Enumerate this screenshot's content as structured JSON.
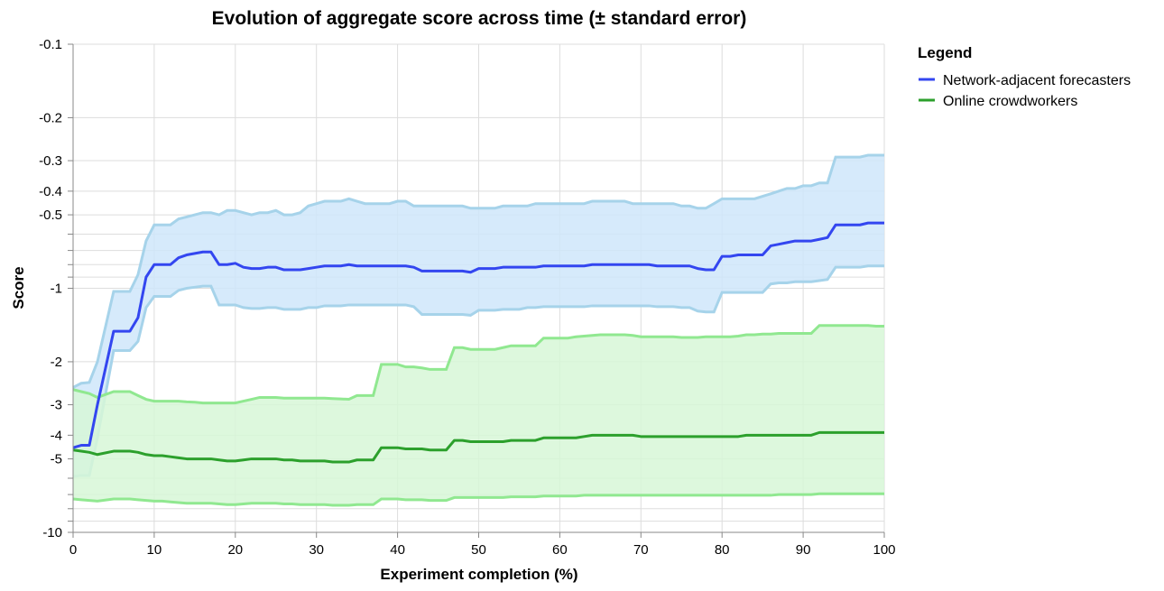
{
  "chart_data": {
    "type": "area",
    "title": "Evolution of aggregate score across time (± standard error)",
    "xlabel": "Experiment completion (%)",
    "ylabel": "Score",
    "x_scale": "linear",
    "y_scale": "log (symmetric, negative values)",
    "xlim": [
      0,
      100
    ],
    "ylim": [
      -10,
      -0.1
    ],
    "grid": true,
    "x_ticks": [
      "0",
      "10",
      "20",
      "30",
      "40",
      "50",
      "60",
      "70",
      "80",
      "90",
      "100"
    ],
    "y_ticks": [
      "-0.1",
      "-0.2",
      "-0.3",
      "-0.4",
      "-0.5",
      "-1",
      "-2",
      "-3",
      "-4",
      "-5",
      "-10"
    ],
    "y_tick_values": [
      -0.1,
      -0.2,
      -0.3,
      -0.4,
      -0.5,
      -1,
      -2,
      -3,
      -4,
      -5,
      -10
    ],
    "y_minor_tick_values": [
      -0.6,
      -0.7,
      -0.8,
      -0.9,
      -6,
      -7,
      -8,
      -9
    ],
    "legend": {
      "title": "Legend",
      "position": "right",
      "entries": [
        "Network-adjacent forecasters",
        "Online crowdworkers"
      ]
    },
    "series": [
      {
        "name": "Network-adjacent forecasters",
        "color": "#3346f0",
        "band_fill": "#cfe6fa",
        "band_stroke": "#a6d3ea",
        "x": [
          0,
          1,
          2,
          3,
          5,
          6,
          7,
          8,
          9,
          10,
          11,
          12,
          13,
          14,
          15,
          16,
          17,
          18,
          19,
          20,
          21,
          22,
          23,
          24,
          25,
          26,
          27,
          28,
          29,
          30,
          31,
          32,
          33,
          34,
          35,
          36,
          37,
          38,
          39,
          40,
          41,
          42,
          43,
          44,
          45,
          46,
          47,
          48,
          49,
          50,
          51,
          52,
          53,
          54,
          55,
          56,
          57,
          58,
          59,
          60,
          61,
          62,
          63,
          64,
          65,
          66,
          67,
          68,
          69,
          70,
          71,
          72,
          73,
          74,
          75,
          76,
          77,
          78,
          79,
          80,
          81,
          82,
          83,
          84,
          85,
          86,
          87,
          88,
          89,
          90,
          91,
          92,
          93,
          94,
          95,
          96,
          97,
          98,
          99,
          100
        ],
        "mean": [
          -4.5,
          -4.4,
          -4.4,
          -3.0,
          -1.5,
          -1.5,
          -1.5,
          -1.32,
          -0.9,
          -0.8,
          -0.8,
          -0.8,
          -0.75,
          -0.73,
          -0.72,
          -0.71,
          -0.71,
          -0.8,
          -0.8,
          -0.79,
          -0.82,
          -0.83,
          -0.83,
          -0.82,
          -0.82,
          -0.84,
          -0.84,
          -0.84,
          -0.83,
          -0.82,
          -0.81,
          -0.81,
          -0.81,
          -0.8,
          -0.81,
          -0.81,
          -0.81,
          -0.81,
          -0.81,
          -0.81,
          -0.81,
          -0.82,
          -0.85,
          -0.85,
          -0.85,
          -0.85,
          -0.85,
          -0.85,
          -0.86,
          -0.83,
          -0.83,
          -0.83,
          -0.82,
          -0.82,
          -0.82,
          -0.82,
          -0.82,
          -0.81,
          -0.81,
          -0.81,
          -0.81,
          -0.81,
          -0.81,
          -0.8,
          -0.8,
          -0.8,
          -0.8,
          -0.8,
          -0.8,
          -0.8,
          -0.8,
          -0.81,
          -0.81,
          -0.81,
          -0.81,
          -0.81,
          -0.83,
          -0.84,
          -0.84,
          -0.74,
          -0.74,
          -0.73,
          -0.73,
          -0.73,
          -0.73,
          -0.67,
          -0.66,
          -0.65,
          -0.64,
          -0.64,
          -0.64,
          -0.63,
          -0.62,
          -0.55,
          -0.55,
          -0.55,
          -0.55,
          -0.54,
          -0.54,
          -0.54
        ],
        "upper": [
          -2.55,
          -2.45,
          -2.43,
          -2.0,
          -1.03,
          -1.03,
          -1.03,
          -0.88,
          -0.64,
          -0.55,
          -0.55,
          -0.55,
          -0.52,
          -0.51,
          -0.5,
          -0.49,
          -0.49,
          -0.5,
          -0.48,
          -0.48,
          -0.49,
          -0.5,
          -0.49,
          -0.49,
          -0.48,
          -0.5,
          -0.5,
          -0.49,
          -0.46,
          -0.45,
          -0.44,
          -0.44,
          -0.44,
          -0.43,
          -0.44,
          -0.45,
          -0.45,
          -0.45,
          -0.45,
          -0.44,
          -0.44,
          -0.46,
          -0.46,
          -0.46,
          -0.46,
          -0.46,
          -0.46,
          -0.46,
          -0.47,
          -0.47,
          -0.47,
          -0.47,
          -0.46,
          -0.46,
          -0.46,
          -0.46,
          -0.45,
          -0.45,
          -0.45,
          -0.45,
          -0.45,
          -0.45,
          -0.45,
          -0.44,
          -0.44,
          -0.44,
          -0.44,
          -0.44,
          -0.45,
          -0.45,
          -0.45,
          -0.45,
          -0.45,
          -0.45,
          -0.46,
          -0.46,
          -0.47,
          -0.47,
          -0.45,
          -0.43,
          -0.43,
          -0.43,
          -0.43,
          -0.43,
          -0.42,
          -0.41,
          -0.4,
          -0.39,
          -0.39,
          -0.38,
          -0.38,
          -0.37,
          -0.37,
          -0.29,
          -0.29,
          -0.29,
          -0.29,
          -0.285,
          -0.285,
          -0.285
        ],
        "lower": [
          -5.9,
          -5.85,
          -5.85,
          -4.1,
          -1.8,
          -1.8,
          -1.8,
          -1.65,
          -1.2,
          -1.08,
          -1.08,
          -1.08,
          -1.02,
          -1.0,
          -0.99,
          -0.98,
          -0.98,
          -1.17,
          -1.17,
          -1.17,
          -1.2,
          -1.21,
          -1.21,
          -1.2,
          -1.2,
          -1.22,
          -1.22,
          -1.22,
          -1.2,
          -1.2,
          -1.18,
          -1.18,
          -1.18,
          -1.17,
          -1.17,
          -1.17,
          -1.17,
          -1.17,
          -1.17,
          -1.17,
          -1.17,
          -1.19,
          -1.28,
          -1.28,
          -1.28,
          -1.28,
          -1.28,
          -1.28,
          -1.29,
          -1.23,
          -1.23,
          -1.23,
          -1.22,
          -1.22,
          -1.22,
          -1.2,
          -1.2,
          -1.19,
          -1.19,
          -1.19,
          -1.19,
          -1.19,
          -1.19,
          -1.18,
          -1.18,
          -1.18,
          -1.18,
          -1.18,
          -1.18,
          -1.18,
          -1.18,
          -1.19,
          -1.19,
          -1.19,
          -1.2,
          -1.2,
          -1.24,
          -1.25,
          -1.25,
          -1.04,
          -1.04,
          -1.04,
          -1.04,
          -1.04,
          -1.04,
          -0.96,
          -0.95,
          -0.95,
          -0.94,
          -0.94,
          -0.94,
          -0.93,
          -0.92,
          -0.82,
          -0.82,
          -0.82,
          -0.82,
          -0.81,
          -0.81,
          -0.81
        ]
      },
      {
        "name": "Online crowdworkers",
        "color": "#2ca02c",
        "band_fill": "#d7f7d7",
        "band_stroke": "#90e890",
        "x": [
          0,
          1,
          2,
          3,
          5,
          6,
          7,
          8,
          9,
          10,
          11,
          12,
          13,
          14,
          15,
          16,
          17,
          18,
          19,
          20,
          21,
          22,
          23,
          24,
          25,
          26,
          27,
          28,
          29,
          30,
          31,
          32,
          33,
          34,
          35,
          36,
          37,
          38,
          39,
          40,
          41,
          42,
          43,
          44,
          45,
          46,
          47,
          48,
          49,
          50,
          51,
          52,
          53,
          54,
          55,
          56,
          57,
          58,
          59,
          60,
          61,
          62,
          63,
          64,
          65,
          66,
          67,
          68,
          69,
          70,
          71,
          72,
          73,
          74,
          75,
          76,
          77,
          78,
          79,
          80,
          81,
          82,
          83,
          84,
          85,
          86,
          87,
          88,
          89,
          90,
          91,
          92,
          93,
          94,
          95,
          96,
          97,
          98,
          99,
          100
        ],
        "mean": [
          -4.6,
          -4.65,
          -4.7,
          -4.8,
          -4.65,
          -4.65,
          -4.65,
          -4.7,
          -4.8,
          -4.85,
          -4.85,
          -4.9,
          -4.95,
          -5.0,
          -5.0,
          -5.0,
          -5.0,
          -5.05,
          -5.1,
          -5.1,
          -5.05,
          -5.0,
          -5.0,
          -5.0,
          -5.0,
          -5.05,
          -5.05,
          -5.1,
          -5.1,
          -5.1,
          -5.1,
          -5.15,
          -5.15,
          -5.15,
          -5.05,
          -5.05,
          -5.05,
          -4.5,
          -4.5,
          -4.5,
          -4.55,
          -4.55,
          -4.55,
          -4.6,
          -4.6,
          -4.6,
          -4.2,
          -4.2,
          -4.25,
          -4.25,
          -4.25,
          -4.25,
          -4.25,
          -4.2,
          -4.2,
          -4.2,
          -4.2,
          -4.1,
          -4.1,
          -4.1,
          -4.1,
          -4.1,
          -4.05,
          -4.0,
          -4.0,
          -4.0,
          -4.0,
          -4.0,
          -4.0,
          -4.05,
          -4.05,
          -4.05,
          -4.05,
          -4.05,
          -4.05,
          -4.05,
          -4.05,
          -4.05,
          -4.05,
          -4.05,
          -4.05,
          -4.05,
          -4.0,
          -4.0,
          -4.0,
          -4.0,
          -4.0,
          -4.0,
          -4.0,
          -4.0,
          -4.0,
          -3.9,
          -3.9,
          -3.9,
          -3.9,
          -3.9,
          -3.9,
          -3.9,
          -3.9,
          -3.9
        ],
        "upper": [
          -2.6,
          -2.65,
          -2.7,
          -2.8,
          -2.65,
          -2.65,
          -2.65,
          -2.75,
          -2.85,
          -2.9,
          -2.9,
          -2.9,
          -2.9,
          -2.92,
          -2.93,
          -2.95,
          -2.95,
          -2.95,
          -2.95,
          -2.95,
          -2.9,
          -2.85,
          -2.8,
          -2.8,
          -2.8,
          -2.82,
          -2.82,
          -2.82,
          -2.82,
          -2.82,
          -2.82,
          -2.83,
          -2.84,
          -2.85,
          -2.75,
          -2.75,
          -2.75,
          -2.05,
          -2.05,
          -2.05,
          -2.1,
          -2.1,
          -2.12,
          -2.15,
          -2.15,
          -2.15,
          -1.75,
          -1.75,
          -1.78,
          -1.78,
          -1.78,
          -1.78,
          -1.75,
          -1.72,
          -1.72,
          -1.72,
          -1.72,
          -1.6,
          -1.6,
          -1.6,
          -1.6,
          -1.58,
          -1.57,
          -1.56,
          -1.55,
          -1.55,
          -1.55,
          -1.55,
          -1.56,
          -1.58,
          -1.58,
          -1.58,
          -1.58,
          -1.58,
          -1.59,
          -1.59,
          -1.59,
          -1.58,
          -1.58,
          -1.58,
          -1.58,
          -1.57,
          -1.55,
          -1.55,
          -1.54,
          -1.54,
          -1.53,
          -1.53,
          -1.53,
          -1.53,
          -1.53,
          -1.42,
          -1.42,
          -1.42,
          -1.42,
          -1.42,
          -1.42,
          -1.42,
          -1.43,
          -1.43
        ],
        "lower": [
          -7.3,
          -7.35,
          -7.4,
          -7.45,
          -7.3,
          -7.3,
          -7.3,
          -7.35,
          -7.4,
          -7.45,
          -7.45,
          -7.5,
          -7.55,
          -7.6,
          -7.6,
          -7.6,
          -7.6,
          -7.65,
          -7.7,
          -7.7,
          -7.65,
          -7.6,
          -7.6,
          -7.6,
          -7.6,
          -7.65,
          -7.65,
          -7.7,
          -7.7,
          -7.7,
          -7.7,
          -7.75,
          -7.75,
          -7.75,
          -7.7,
          -7.7,
          -7.7,
          -7.3,
          -7.3,
          -7.3,
          -7.35,
          -7.35,
          -7.35,
          -7.4,
          -7.4,
          -7.4,
          -7.2,
          -7.2,
          -7.2,
          -7.2,
          -7.2,
          -7.2,
          -7.2,
          -7.15,
          -7.15,
          -7.15,
          -7.15,
          -7.1,
          -7.1,
          -7.1,
          -7.1,
          -7.1,
          -7.05,
          -7.05,
          -7.05,
          -7.05,
          -7.05,
          -7.05,
          -7.05,
          -7.05,
          -7.05,
          -7.05,
          -7.05,
          -7.05,
          -7.05,
          -7.05,
          -7.05,
          -7.05,
          -7.05,
          -7.05,
          -7.05,
          -7.05,
          -7.05,
          -7.05,
          -7.05,
          -7.05,
          -7.0,
          -7.0,
          -7.0,
          -7.0,
          -7.0,
          -6.95,
          -6.95,
          -6.95,
          -6.95,
          -6.95,
          -6.95,
          -6.95,
          -6.95,
          -6.95
        ]
      }
    ]
  }
}
